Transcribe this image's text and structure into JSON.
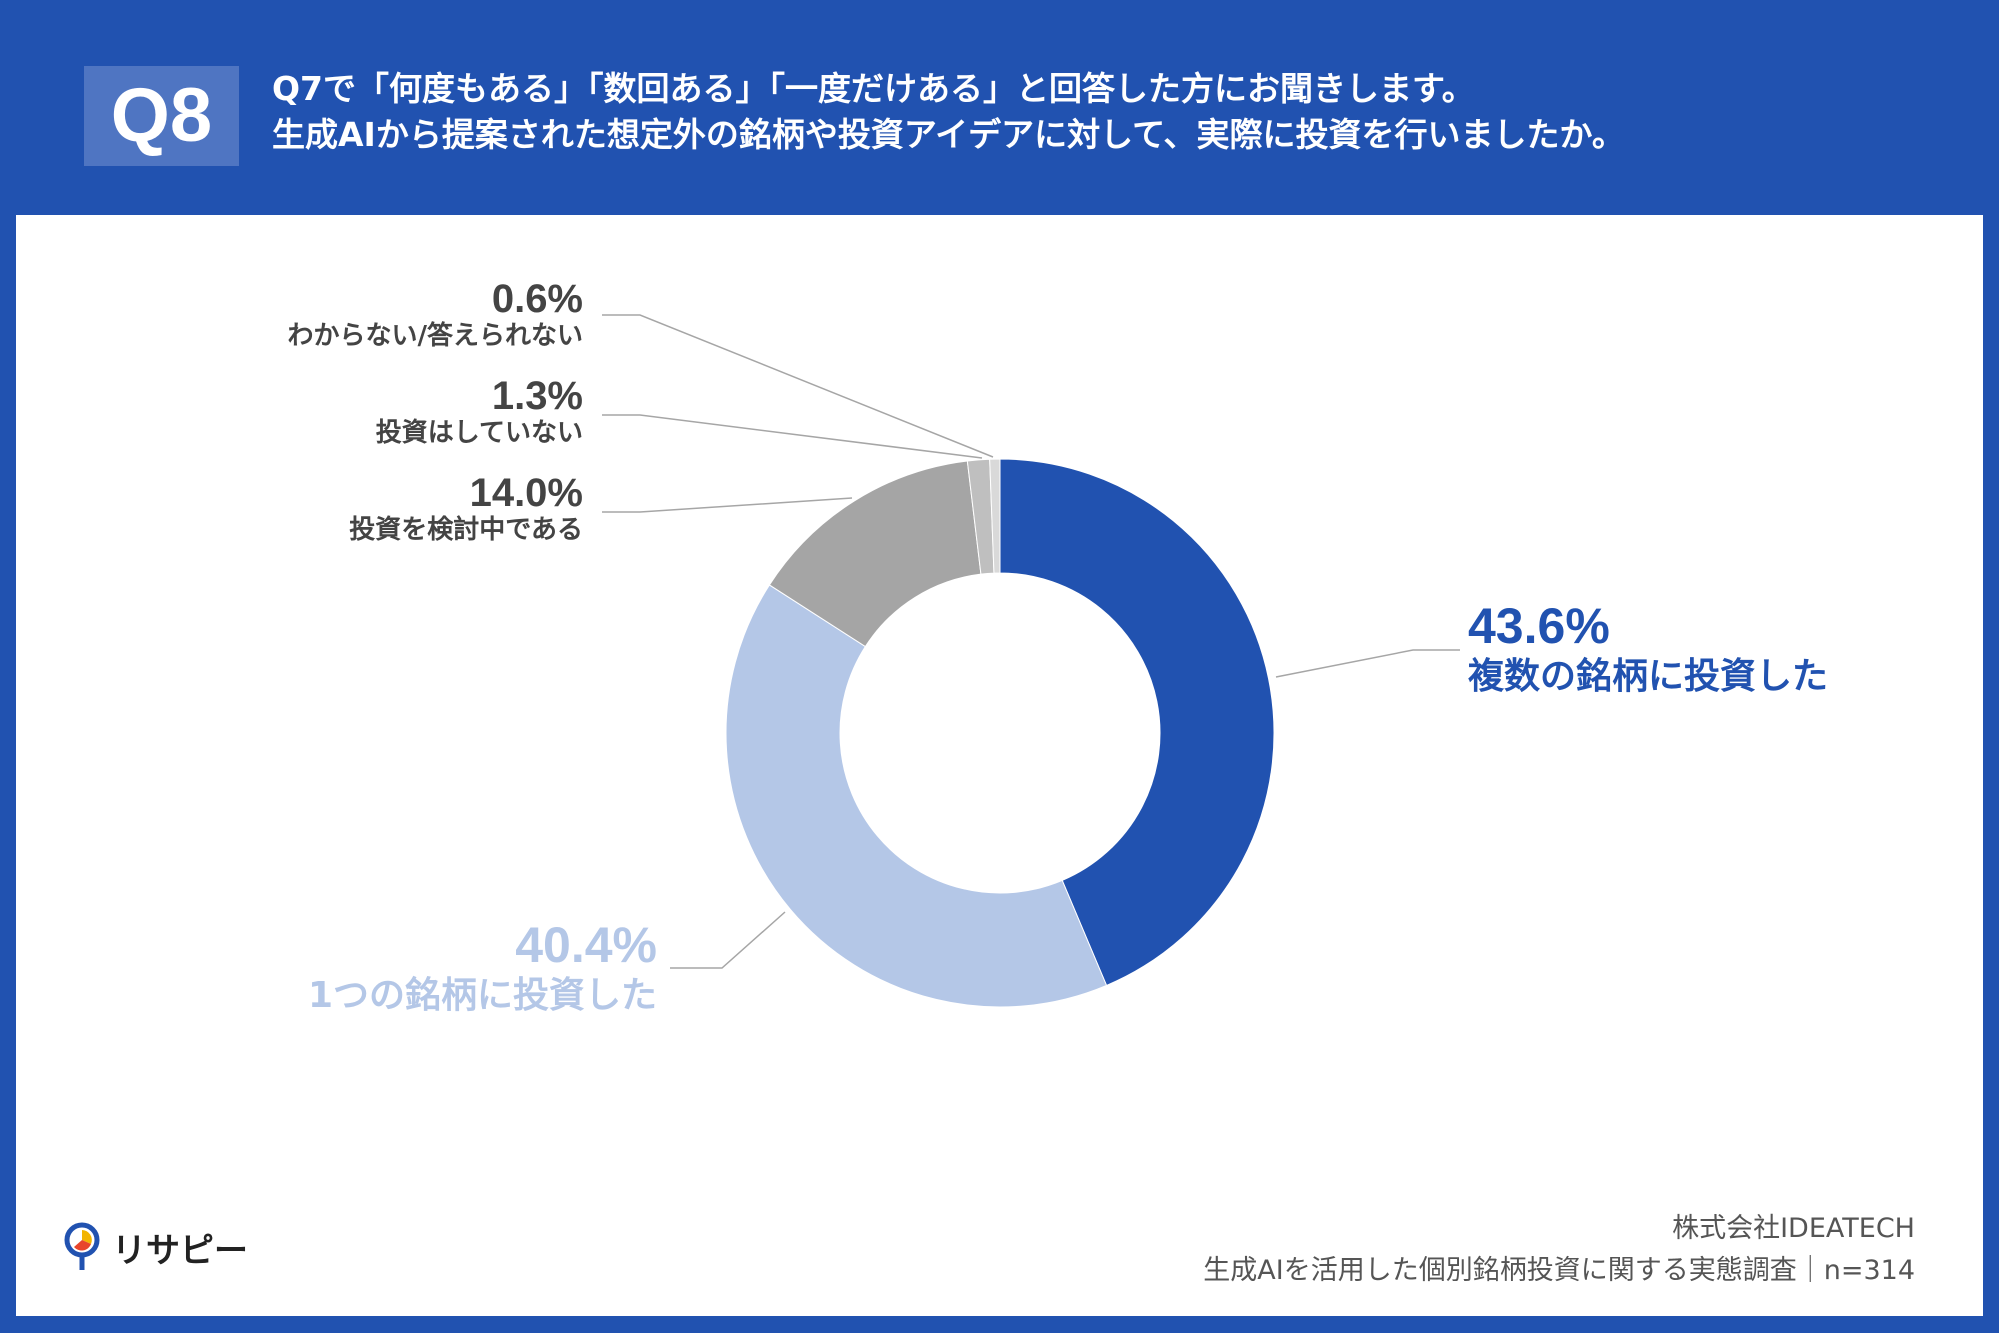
{
  "header": {
    "badge": "Q8",
    "question_line1": "Q7で「何度もある」「数回ある」「一度だけある」と回答した方にお聞きします。",
    "question_line2": "生成AIから提案された想定外の銘柄や投資アイデアに対して、実際に投資を行いましたか。"
  },
  "chart_data": {
    "type": "pie",
    "donut": true,
    "categories": [
      "複数の銘柄に投資した",
      "1つの銘柄に投資した",
      "投資を検討中である",
      "投資はしていない",
      "わからない/答えられない"
    ],
    "values": [
      43.6,
      40.4,
      14.0,
      1.3,
      0.6
    ],
    "value_labels": [
      "43.6%",
      "40.4%",
      "14.0%",
      "1.3%",
      "0.6%"
    ],
    "colors": [
      "#2152b0",
      "#b4c7e7",
      "#a5a5a5",
      "#bfbfbf",
      "#d9d9d9"
    ],
    "label_colors": [
      "#2152b0",
      "#b4c7e7",
      "#444444",
      "#444444",
      "#444444"
    ]
  },
  "footer": {
    "logo_text": "リサピー",
    "company": "株式会社IDEATECH",
    "survey": "生成AIを活用した個別銘柄投資に関する実態調査｜n=314"
  }
}
